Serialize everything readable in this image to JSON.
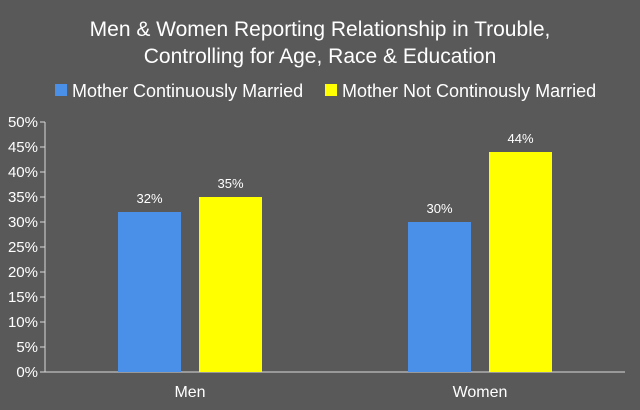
{
  "chart_data": {
    "type": "bar",
    "title_lines": [
      "Men & Women Reporting Relationship in Trouble,",
      "Controlling for Age, Race & Education"
    ],
    "categories": [
      "Men",
      "Women"
    ],
    "series": [
      {
        "name": "Mother Continuously Married",
        "color": "#4a8fe8",
        "values": [
          32,
          30
        ]
      },
      {
        "name": "Mother Not Continously Married",
        "color": "#ffff00",
        "values": [
          35,
          44
        ]
      }
    ],
    "y_ticks": [
      "0%",
      "5%",
      "10%",
      "15%",
      "20%",
      "25%",
      "30%",
      "35%",
      "40%",
      "45%",
      "50%"
    ],
    "ylim": [
      0,
      50
    ],
    "y_unit": "%",
    "grid": false,
    "legend_position": "top"
  }
}
